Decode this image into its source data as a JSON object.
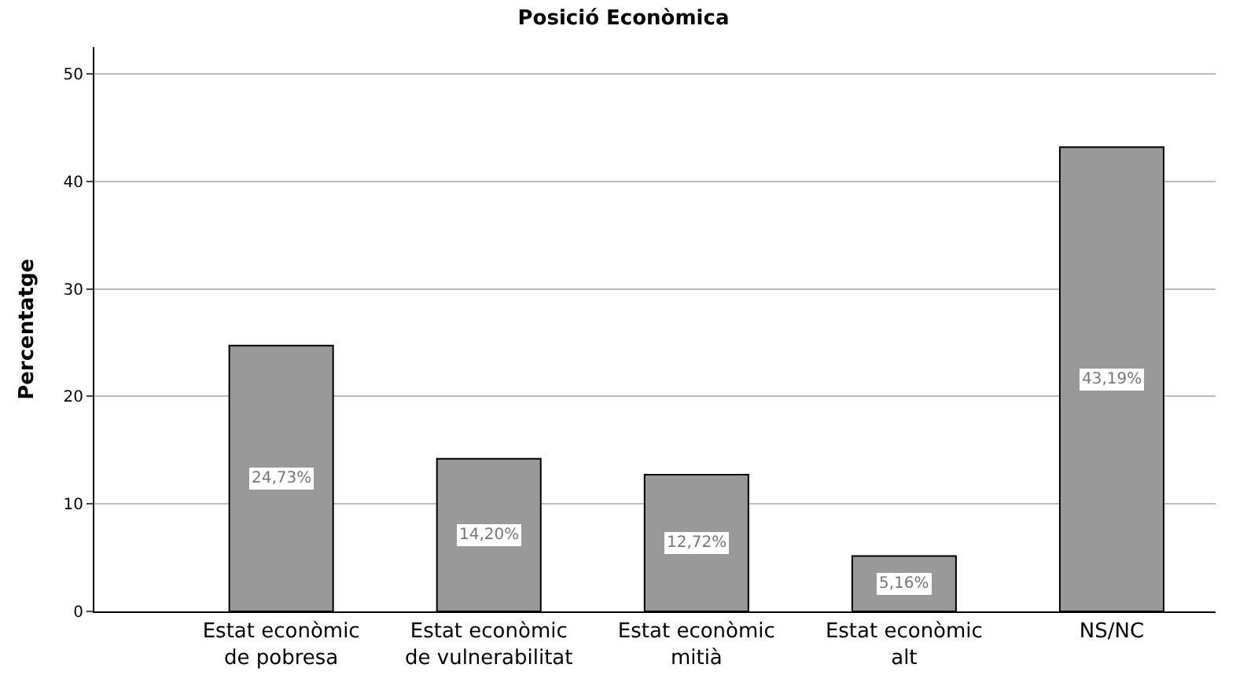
{
  "chart_data": {
    "type": "bar",
    "title": "Posició Econòmica",
    "ylabel": "Percentatge",
    "categories": [
      "Estat econòmic\nde pobresa",
      "Estat econòmic\nde vulnerabilitat",
      "Estat econòmic\nmitià",
      "Estat econòmic\nalt",
      "NS/NC"
    ],
    "values": [
      24.73,
      14.2,
      12.72,
      5.16,
      43.19
    ],
    "value_labels": [
      "24,73%",
      "14,20%",
      "12,72%",
      "5,16%",
      "43,19%"
    ],
    "color": "#999999",
    "ylim": [
      0,
      52.5
    ],
    "yticks": [
      0,
      10,
      20,
      30,
      40,
      50
    ],
    "grid": "y",
    "legend": false
  }
}
